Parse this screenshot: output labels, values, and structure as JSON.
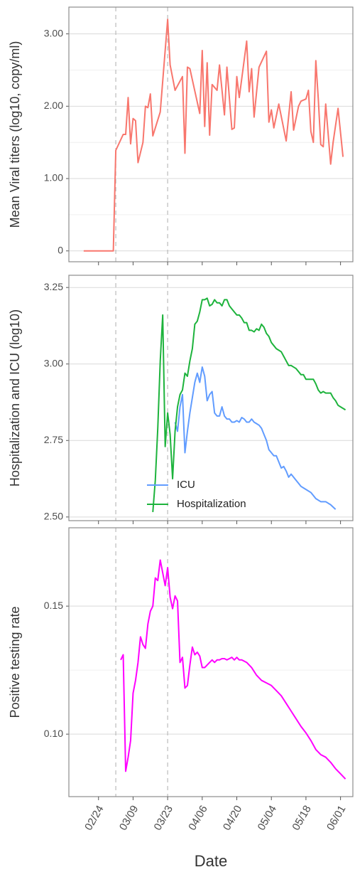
{
  "chart_data": [
    {
      "type": "line",
      "ylabel": "Mean Viral titers (log10, copy/ml)",
      "color": "#F8766D",
      "grid": true,
      "xlim": [
        "02/12",
        "06/06"
      ],
      "ylim": [
        -0.15,
        3.37
      ],
      "yticks": [
        0,
        {
          "value": 1,
          "label": "1.00"
        },
        {
          "value": 2,
          "label": "2.00"
        },
        {
          "value": 3,
          "label": "3.00"
        }
      ],
      "minor_grid": [
        0.5,
        1.5,
        2.5
      ],
      "vlines": [
        "03/02",
        "03/23"
      ],
      "x": [
        "02/18",
        "03/01",
        "03/02",
        "03/05",
        "03/06",
        "03/07",
        "03/08",
        "03/09",
        "03/10",
        "03/11",
        "03/13",
        "03/14",
        "03/15",
        "03/16",
        "03/17",
        "03/20",
        "03/23",
        "03/24",
        "03/26",
        "03/29",
        "03/30",
        "03/31",
        "04/01",
        "04/05",
        "04/06",
        "04/07",
        "04/08",
        "04/09",
        "04/10",
        "04/12",
        "04/13",
        "04/15",
        "04/16",
        "04/18",
        "04/19",
        "04/20",
        "04/21",
        "04/24",
        "04/25",
        "04/26",
        "04/27",
        "04/29",
        "05/02",
        "05/03",
        "05/04",
        "05/05",
        "05/07",
        "05/10",
        "05/12",
        "05/13",
        "05/15",
        "05/16",
        "05/18",
        "05/19",
        "05/20",
        "05/21",
        "05/22",
        "05/23",
        "05/24",
        "05/25",
        "05/26",
        "05/28",
        "05/29",
        "05/31",
        "06/02"
      ],
      "values": [
        0,
        0,
        1.39,
        1.61,
        1.61,
        2.12,
        1.48,
        1.83,
        1.8,
        1.22,
        1.5,
        2.0,
        1.98,
        2.17,
        1.59,
        1.92,
        3.2,
        2.57,
        2.22,
        2.41,
        1.35,
        2.54,
        2.52,
        1.9,
        2.77,
        1.72,
        2.6,
        1.6,
        2.3,
        2.22,
        2.57,
        1.88,
        2.54,
        1.68,
        1.7,
        2.41,
        2.12,
        2.9,
        2.2,
        2.52,
        1.85,
        2.54,
        2.76,
        1.78,
        1.95,
        1.7,
        2.03,
        1.52,
        2.2,
        1.67,
        2.0,
        2.07,
        2.1,
        2.22,
        1.65,
        1.5,
        2.63,
        2.1,
        1.47,
        1.44,
        2.03,
        1.2,
        1.5,
        1.97,
        1.3
      ]
    },
    {
      "type": "line",
      "ylabel": "Hospitalization and ICU (log10)",
      "grid": true,
      "legend": "bottom",
      "xlim": [
        "02/12",
        "06/06"
      ],
      "ylim": [
        2.488,
        3.29
      ],
      "yticks": [
        {
          "value": 2.5,
          "label": "2.50"
        },
        2.75,
        {
          "value": 3,
          "label": "3.00"
        },
        3.25
      ],
      "vlines": [
        "03/02",
        "03/23"
      ],
      "series": [
        {
          "name": "ICU",
          "color": "#619CFF",
          "x": [
            "03/26",
            "03/27",
            "03/28",
            "03/29",
            "03/30",
            "03/31",
            "04/01",
            "04/02",
            "04/03",
            "04/04",
            "04/05",
            "04/06",
            "04/07",
            "04/08",
            "04/09",
            "04/10",
            "04/11",
            "04/12",
            "04/13",
            "04/14",
            "04/15",
            "04/16",
            "04/17",
            "04/18",
            "04/19",
            "04/20",
            "04/21",
            "04/22",
            "04/23",
            "04/24",
            "04/25",
            "04/26",
            "04/27",
            "04/28",
            "04/29",
            "04/30",
            "05/01",
            "05/02",
            "05/03",
            "05/04",
            "05/05",
            "05/06",
            "05/07",
            "05/08",
            "05/09",
            "05/10",
            "05/11",
            "05/12",
            "05/13",
            "05/14",
            "05/15",
            "05/16",
            "05/17",
            "05/18",
            "05/20",
            "05/22",
            "05/24",
            "05/26",
            "05/28",
            "05/30"
          ],
          "values": [
            2.81,
            2.78,
            2.86,
            2.9,
            2.71,
            2.78,
            2.84,
            2.89,
            2.94,
            2.97,
            2.94,
            2.99,
            2.96,
            2.88,
            2.9,
            2.91,
            2.84,
            2.83,
            2.83,
            2.86,
            2.83,
            2.82,
            2.82,
            2.81,
            2.81,
            2.815,
            2.81,
            2.825,
            2.82,
            2.81,
            2.81,
            2.82,
            2.81,
            2.805,
            2.8,
            2.79,
            2.77,
            2.75,
            2.72,
            2.71,
            2.7,
            2.7,
            2.68,
            2.66,
            2.665,
            2.65,
            2.63,
            2.64,
            2.63,
            2.62,
            2.61,
            2.6,
            2.595,
            2.59,
            2.58,
            2.56,
            2.55,
            2.55,
            2.54,
            2.525
          ]
        },
        {
          "name": "Hospitalization",
          "color": "#1DB33C",
          "x": [
            "03/17",
            "03/18",
            "03/19",
            "03/20",
            "03/21",
            "03/22",
            "03/23",
            "03/24",
            "03/25",
            "03/26",
            "03/27",
            "03/28",
            "03/29",
            "03/30",
            "03/31",
            "04/01",
            "04/02",
            "04/03",
            "04/04",
            "04/05",
            "04/06",
            "04/07",
            "04/08",
            "04/09",
            "04/10",
            "04/11",
            "04/12",
            "04/13",
            "04/14",
            "04/15",
            "04/16",
            "04/17",
            "04/18",
            "04/19",
            "04/20",
            "04/21",
            "04/22",
            "04/23",
            "04/24",
            "04/25",
            "04/26",
            "04/27",
            "04/28",
            "04/29",
            "04/30",
            "05/01",
            "05/02",
            "05/03",
            "05/04",
            "05/05",
            "05/06",
            "05/07",
            "05/08",
            "05/09",
            "05/10",
            "05/11",
            "05/12",
            "05/13",
            "05/14",
            "05/15",
            "05/16",
            "05/17",
            "05/18",
            "05/19",
            "05/20",
            "05/21",
            "05/22",
            "05/23",
            "05/24",
            "05/25",
            "05/26",
            "05/27",
            "05/28",
            "05/29",
            "05/30",
            "05/31",
            "06/01",
            "06/03"
          ],
          "values": [
            2.516,
            2.62,
            2.79,
            3.01,
            3.16,
            2.73,
            2.84,
            2.77,
            2.625,
            2.78,
            2.86,
            2.9,
            2.915,
            2.97,
            2.96,
            3.01,
            3.05,
            3.13,
            3.14,
            3.17,
            3.21,
            3.21,
            3.215,
            3.19,
            3.195,
            3.21,
            3.2,
            3.2,
            3.19,
            3.21,
            3.21,
            3.19,
            3.18,
            3.17,
            3.16,
            3.16,
            3.15,
            3.135,
            3.135,
            3.11,
            3.11,
            3.105,
            3.115,
            3.11,
            3.13,
            3.12,
            3.1,
            3.09,
            3.07,
            3.06,
            3.05,
            3.045,
            3.04,
            3.025,
            3.01,
            2.995,
            2.995,
            2.99,
            2.985,
            2.975,
            2.965,
            2.965,
            2.95,
            2.95,
            2.95,
            2.95,
            2.935,
            2.915,
            2.905,
            2.91,
            2.905,
            2.905,
            2.905,
            2.89,
            2.88,
            2.865,
            2.86,
            2.85
          ]
        }
      ]
    },
    {
      "type": "line",
      "ylabel": "Positive testing rate",
      "xlabel": "Date",
      "color": "#FF00FF",
      "grid": true,
      "xlim": [
        "02/12",
        "06/06"
      ],
      "ylim": [
        0.0756,
        0.1806
      ],
      "yticks": [
        {
          "value": 0.1,
          "label": "0.10"
        },
        0.15
      ],
      "minor_grid": [
        0.125
      ],
      "vlines": [
        "03/02",
        "03/23"
      ],
      "xticks": [
        "02/24",
        "03/09",
        "03/23",
        "04/06",
        "04/20",
        "05/04",
        "05/18",
        "06/01"
      ],
      "x": [
        "03/04",
        "03/05",
        "03/06",
        "03/07",
        "03/08",
        "03/09",
        "03/10",
        "03/11",
        "03/12",
        "03/13",
        "03/14",
        "03/15",
        "03/16",
        "03/17",
        "03/18",
        "03/19",
        "03/20",
        "03/21",
        "03/22",
        "03/23",
        "03/24",
        "03/25",
        "03/26",
        "03/27",
        "03/28",
        "03/29",
        "03/30",
        "03/31",
        "04/01",
        "04/02",
        "04/03",
        "04/04",
        "04/05",
        "04/06",
        "04/07",
        "04/08",
        "04/09",
        "04/10",
        "04/11",
        "04/12",
        "04/13",
        "04/14",
        "04/15",
        "04/16",
        "04/17",
        "04/18",
        "04/19",
        "04/20",
        "04/21",
        "04/22",
        "04/24",
        "04/26",
        "04/28",
        "04/30",
        "05/02",
        "05/04",
        "05/06",
        "05/08",
        "05/10",
        "05/12",
        "05/14",
        "05/16",
        "05/18",
        "05/20",
        "05/22",
        "05/24",
        "05/26",
        "05/28",
        "05/30",
        "06/01",
        "06/03"
      ],
      "values": [
        0.129,
        0.131,
        0.0855,
        0.091,
        0.0975,
        0.116,
        0.121,
        0.128,
        0.138,
        0.135,
        0.1335,
        0.143,
        0.148,
        0.15,
        0.161,
        0.16,
        0.168,
        0.163,
        0.158,
        0.165,
        0.1535,
        0.149,
        0.154,
        0.152,
        0.128,
        0.13,
        0.118,
        0.119,
        0.127,
        0.134,
        0.131,
        0.132,
        0.1305,
        0.126,
        0.126,
        0.127,
        0.128,
        0.129,
        0.128,
        0.129,
        0.129,
        0.1295,
        0.1295,
        0.129,
        0.1295,
        0.13,
        0.129,
        0.13,
        0.129,
        0.129,
        0.128,
        0.126,
        0.123,
        0.121,
        0.12,
        0.119,
        0.117,
        0.115,
        0.112,
        0.109,
        0.106,
        0.103,
        0.1005,
        0.0975,
        0.094,
        0.092,
        0.091,
        0.089,
        0.0865,
        0.0845,
        0.0825
      ]
    }
  ]
}
